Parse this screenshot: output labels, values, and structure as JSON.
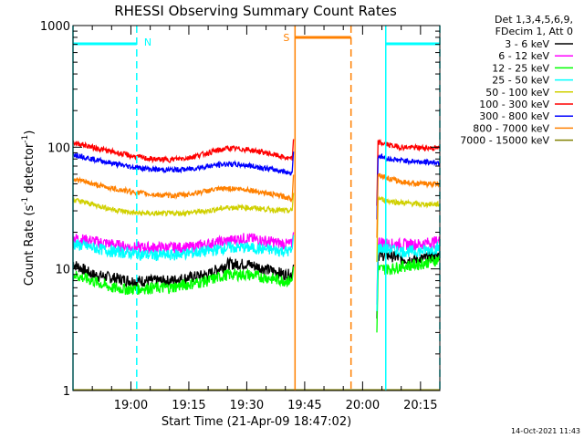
{
  "chart_data": {
    "type": "line",
    "title": "RHESSI Observing Summary Count Rates",
    "xlabel": "Start Time (21-Apr-09 18:47:02)",
    "ylabel_main": "Count Rate (s",
    "ylabel_sup1": "-1",
    "ylabel_mid": " detector",
    "ylabel_sup2": "-1",
    "ylabel_end": ")",
    "y_scale": "log",
    "ylim": [
      1,
      1000
    ],
    "xlim_minutes": [
      -15,
      80
    ],
    "x_ticks": [
      {
        "t": 0,
        "label": "19:00"
      },
      {
        "t": 15,
        "label": "19:15"
      },
      {
        "t": 30,
        "label": "19:30"
      },
      {
        "t": 45,
        "label": "19:45"
      },
      {
        "t": 60,
        "label": "20:00"
      },
      {
        "t": 75,
        "label": "20:15"
      }
    ],
    "y_ticks": [
      {
        "v": 1,
        "label": "1"
      },
      {
        "v": 10,
        "label": "10"
      },
      {
        "v": 100,
        "label": "100"
      },
      {
        "v": 1000,
        "label": "1000"
      }
    ],
    "legend_header": [
      "Det 1,3,4,5,6,9,",
      "FDecim 1, Att 0"
    ],
    "legend_position": "right",
    "footer_timestamp": "14-Oct-2021 11:43",
    "markers": {
      "night_label": "N",
      "saa_label": "S",
      "night_color": "#00ffff",
      "saa_color": "#ff8000",
      "night_intervals": [
        [
          -15,
          1.5
        ],
        [
          66,
          80
        ]
      ],
      "saa_interval": [
        42.5,
        57
      ]
    },
    "series": [
      {
        "name": "3 - 6 keV",
        "color": "#000000",
        "times": [
          -15,
          -10,
          -5,
          0,
          5,
          10,
          15,
          20,
          25,
          30,
          35,
          40,
          41.5,
          64,
          67,
          70,
          75,
          80
        ],
        "values": [
          11,
          9,
          8.5,
          8,
          8,
          8,
          8.5,
          9,
          11,
          11,
          10,
          9,
          9,
          13,
          13,
          12,
          12,
          13
        ]
      },
      {
        "name": "6 - 12 keV",
        "color": "#ff00ff",
        "times": [
          -15,
          -10,
          -5,
          0,
          5,
          10,
          15,
          20,
          25,
          30,
          35,
          40,
          41.5,
          64,
          67,
          70,
          75,
          80
        ],
        "values": [
          18,
          17,
          16,
          15,
          15,
          15,
          15,
          16,
          17,
          18,
          17,
          16,
          16,
          17,
          16,
          16,
          16,
          17
        ]
      },
      {
        "name": "12 - 25 keV",
        "color": "#00ff00",
        "times": [
          -15,
          -10,
          -5,
          0,
          5,
          10,
          15,
          20,
          25,
          30,
          35,
          40,
          41.5,
          64,
          67,
          70,
          75,
          80
        ],
        "values": [
          9,
          8,
          7,
          6.8,
          7,
          7,
          7.5,
          8,
          9,
          9,
          8.5,
          8,
          8,
          10,
          10,
          10.5,
          11,
          12
        ]
      },
      {
        "name": "25 - 50 keV",
        "color": "#00ffff",
        "times": [
          -15,
          -10,
          -5,
          0,
          5,
          10,
          15,
          20,
          25,
          30,
          35,
          40,
          41.5,
          64,
          67,
          70,
          75,
          80
        ],
        "values": [
          16,
          15,
          14,
          13.5,
          13,
          13,
          13.5,
          14,
          15,
          15,
          14.5,
          14,
          14,
          15,
          14.5,
          14,
          14,
          15
        ]
      },
      {
        "name": "50 - 100 keV",
        "color": "#d0d000",
        "times": [
          -15,
          -10,
          -5,
          0,
          5,
          10,
          15,
          20,
          25,
          30,
          35,
          40,
          41.5,
          64,
          67,
          70,
          75,
          80
        ],
        "values": [
          37,
          34,
          31,
          29,
          28.5,
          28.5,
          29,
          30,
          32,
          32,
          31,
          30,
          30,
          38,
          36,
          35,
          34,
          34
        ]
      },
      {
        "name": "100 - 300 keV",
        "color": "#ff0000",
        "times": [
          -15,
          -10,
          -5,
          0,
          5,
          10,
          15,
          20,
          25,
          30,
          35,
          40,
          41.5,
          64,
          67,
          70,
          75,
          80
        ],
        "values": [
          110,
          100,
          92,
          85,
          80,
          79,
          82,
          90,
          98,
          96,
          90,
          82,
          80,
          110,
          104,
          100,
          99,
          98
        ]
      },
      {
        "name": "300 - 800 keV",
        "color": "#0000ff",
        "times": [
          -15,
          -10,
          -5,
          0,
          5,
          10,
          15,
          20,
          25,
          30,
          35,
          40,
          41.5,
          64,
          67,
          70,
          75,
          80
        ],
        "values": [
          88,
          80,
          74,
          69,
          66,
          65,
          66,
          70,
          73,
          71,
          67,
          63,
          61,
          85,
          80,
          78,
          76,
          75
        ]
      },
      {
        "name": "800 - 7000 keV",
        "color": "#ff8000",
        "times": [
          -15,
          -10,
          -5,
          0,
          5,
          10,
          15,
          20,
          25,
          30,
          35,
          40,
          41.5,
          64,
          67,
          70,
          75,
          80
        ],
        "values": [
          55,
          50,
          46,
          43,
          41,
          40,
          41,
          44,
          46,
          45,
          42,
          39,
          38,
          60,
          55,
          52,
          50,
          50
        ]
      },
      {
        "name": "7000 - 15000 keV",
        "color": "#808000",
        "times": [
          -15,
          80
        ],
        "values": [
          1,
          1
        ]
      }
    ]
  }
}
